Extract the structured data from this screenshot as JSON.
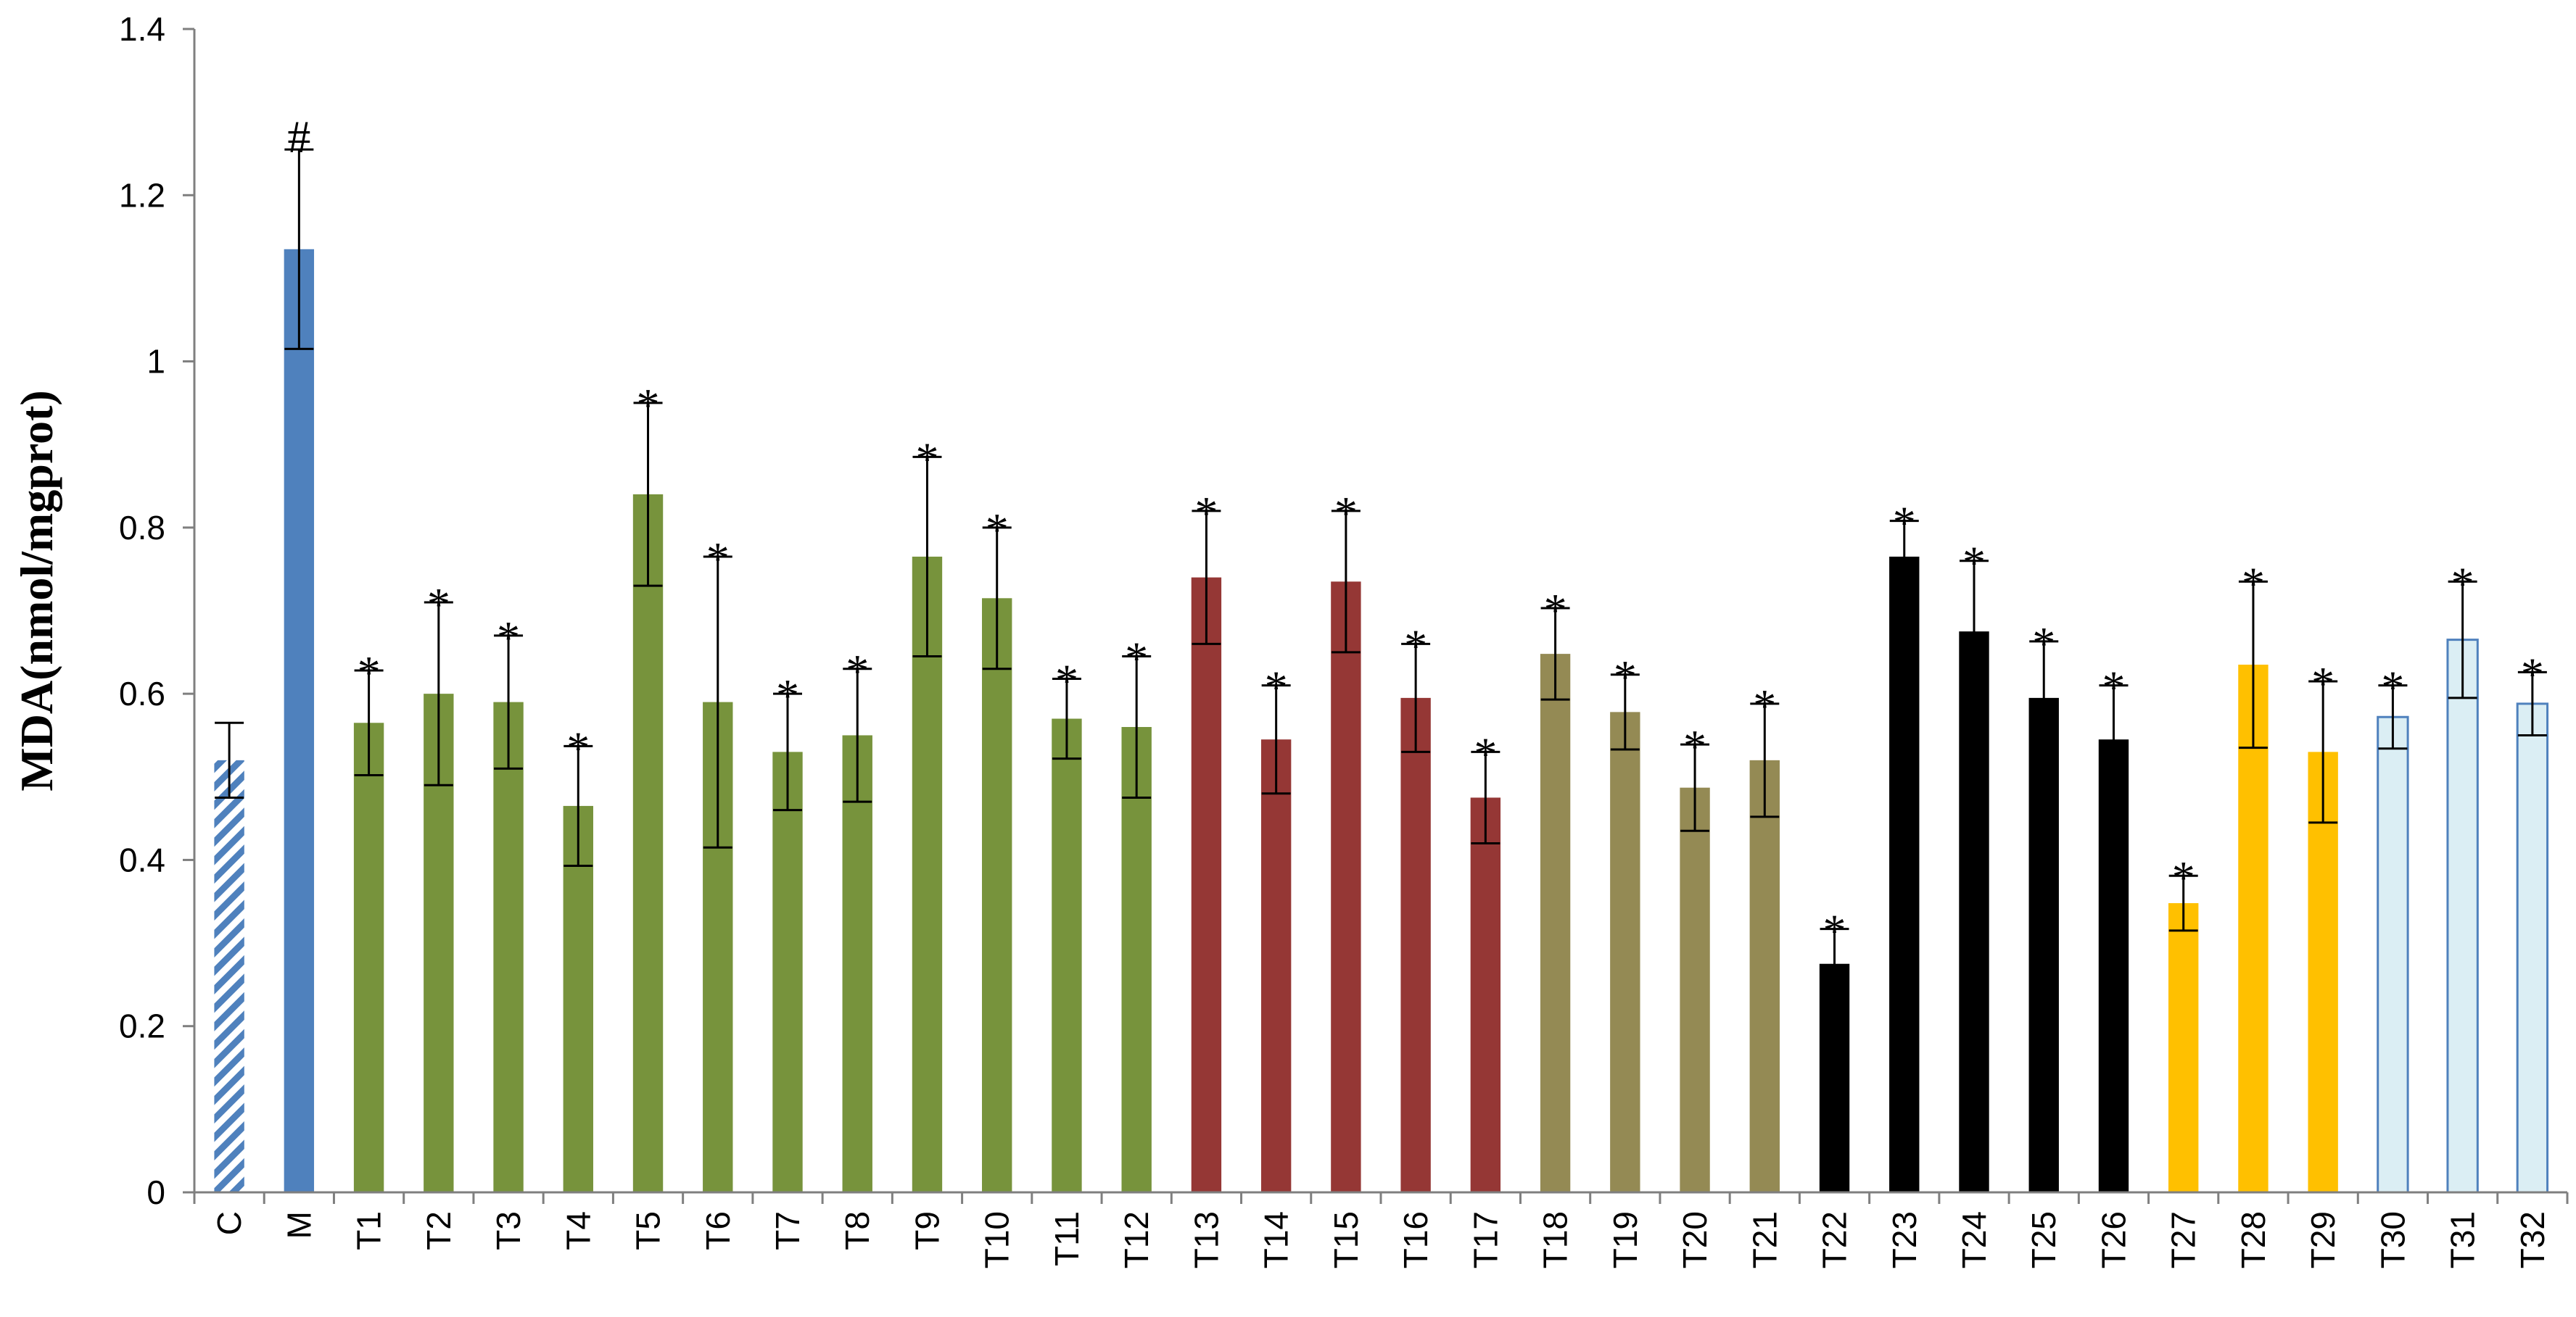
{
  "chart_data": {
    "type": "bar",
    "ylabel": "MDA(nmol/mgprot)",
    "ylim": [
      0,
      1.4
    ],
    "yticks": [
      "0",
      "0.2",
      "0.4",
      "0.6",
      "0.8",
      "1",
      "1.2",
      "1.4"
    ],
    "grid": false,
    "legend": "none",
    "categories": [
      "C",
      "M",
      "T1",
      "T2",
      "T3",
      "T4",
      "T5",
      "T6",
      "T7",
      "T8",
      "T9",
      "T10",
      "T11",
      "T12",
      "T13",
      "T14",
      "T15",
      "T16",
      "T17",
      "T18",
      "T19",
      "T20",
      "T21",
      "T22",
      "T23",
      "T24",
      "T25",
      "T26",
      "T27",
      "T28",
      "T29",
      "T30",
      "T31",
      "T32"
    ],
    "values": [
      0.52,
      1.135,
      0.565,
      0.6,
      0.59,
      0.465,
      0.84,
      0.59,
      0.53,
      0.55,
      0.765,
      0.715,
      0.57,
      0.56,
      0.74,
      0.545,
      0.735,
      0.595,
      0.475,
      0.648,
      0.578,
      0.487,
      0.52,
      0.275,
      0.765,
      0.675,
      0.595,
      0.545,
      0.348,
      0.635,
      0.53,
      0.572,
      0.665,
      0.588
    ],
    "errors": [
      0.045,
      0.12,
      0.063,
      0.11,
      0.08,
      0.072,
      0.11,
      0.175,
      0.07,
      0.08,
      0.12,
      0.085,
      0.048,
      0.085,
      0.08,
      0.065,
      0.085,
      0.065,
      0.055,
      0.055,
      0.045,
      0.052,
      0.068,
      0.042,
      0.043,
      0.085,
      0.068,
      0.065,
      0.033,
      0.1,
      0.085,
      0.038,
      0.07,
      0.038
    ],
    "annotations": [
      "",
      "#",
      "*",
      "*",
      "*",
      "*",
      "*",
      "*",
      "*",
      "*",
      "*",
      "*",
      "*",
      "*",
      "*",
      "*",
      "*",
      "*",
      "*",
      "*",
      "*",
      "*",
      "*",
      "*",
      "*",
      "*",
      "*",
      "*",
      "*",
      "*",
      "*",
      "*",
      "*",
      "*"
    ],
    "colors": [
      "hatched-blue",
      "#4f81bd",
      "#77933c",
      "#77933c",
      "#77933c",
      "#77933c",
      "#77933c",
      "#77933c",
      "#77933c",
      "#77933c",
      "#77933c",
      "#77933c",
      "#77933c",
      "#77933c",
      "#953735",
      "#953735",
      "#953735",
      "#953735",
      "#953735",
      "#948a54",
      "#948a54",
      "#948a54",
      "#948a54",
      "#000000",
      "#000000",
      "#000000",
      "#000000",
      "#000000",
      "#ffc000",
      "#ffc000",
      "#ffc000",
      "#dbeef4",
      "#dbeef4",
      "#dbeef4"
    ]
  }
}
